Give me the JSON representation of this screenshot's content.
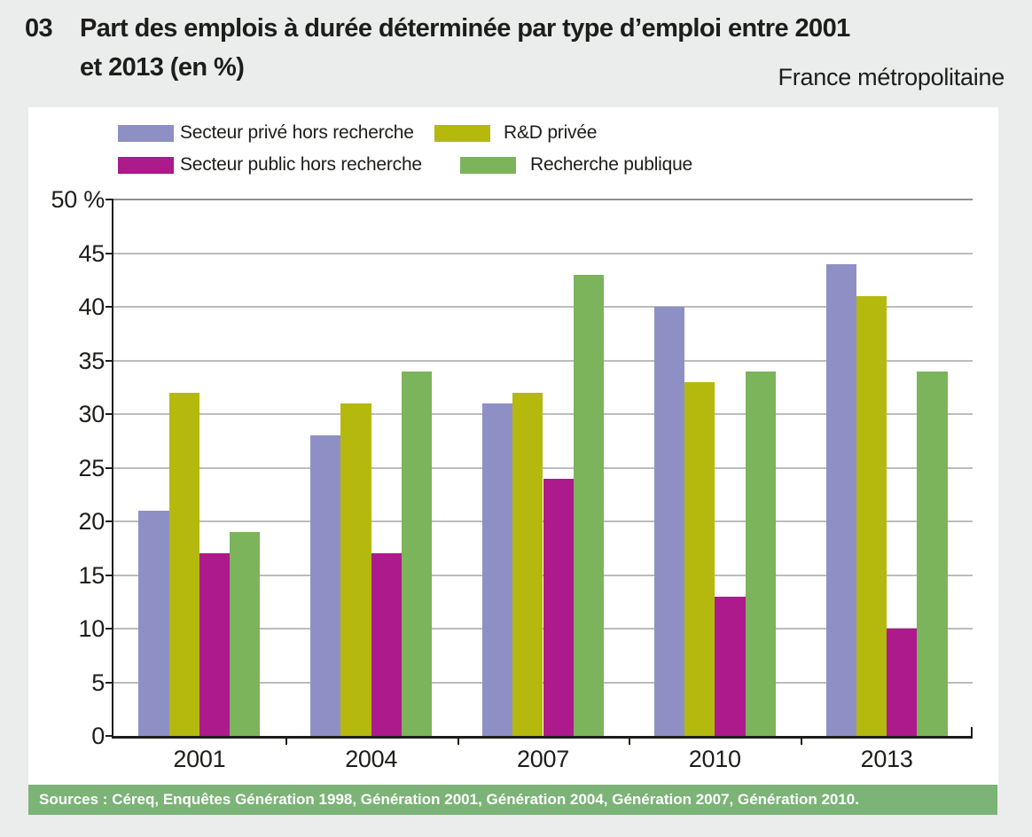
{
  "header": {
    "number": "03",
    "title_line1": "Part des emplois à durée déterminée par type d’emploi entre 2001",
    "title_line2": "et 2013 (en %)",
    "region": "France métropolitaine"
  },
  "legend": {
    "items": [
      {
        "label": "Secteur privé hors recherche",
        "color": "#8e90c5"
      },
      {
        "label": "R&D privée",
        "color": "#b5b90d"
      },
      {
        "label": "Secteur public hors recherche",
        "color": "#ad1a8c"
      },
      {
        "label": "Recherche publique",
        "color": "#7cb45c"
      }
    ]
  },
  "chart_data": {
    "type": "bar",
    "title": "Part des emplois à durée déterminée par type d’emploi entre 2001 et 2013 (en %)",
    "subtitle": "France métropolitaine",
    "categories": [
      "2001",
      "2004",
      "2007",
      "2010",
      "2013"
    ],
    "series": [
      {
        "name": "Secteur privé hors recherche",
        "color": "#8e90c5",
        "values": [
          21,
          28,
          31,
          40,
          44
        ]
      },
      {
        "name": "R&D privée",
        "color": "#b5b90d",
        "values": [
          32,
          31,
          32,
          33,
          41
        ]
      },
      {
        "name": "Secteur public hors recherche",
        "color": "#ad1a8c",
        "values": [
          17,
          17,
          24,
          13,
          10
        ]
      },
      {
        "name": "Recherche publique",
        "color": "#7cb45c",
        "values": [
          19,
          34,
          43,
          34,
          34
        ]
      }
    ],
    "xlabel": "",
    "ylabel": "%",
    "ylim": [
      0,
      50
    ],
    "ytick_step": 5,
    "ytick_top_label": "50 %",
    "grid": true,
    "legend_position": "top-left"
  },
  "source": {
    "text": "Sources : Céreq, Enquêtes Génération 1998, Génération 2001, Génération 2004, Génération 2007, Génération 2010."
  }
}
